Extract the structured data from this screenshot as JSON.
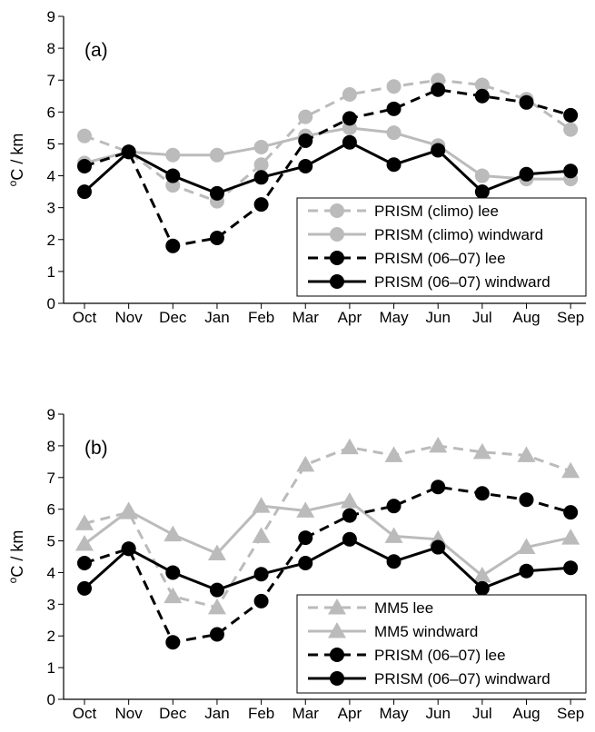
{
  "chart_data": [
    {
      "type": "line",
      "panel_label": "(a)",
      "ylabel_sup": "o",
      "ylabel_main": "C / km",
      "ylim": [
        0,
        9
      ],
      "yticks": [
        "0",
        "1",
        "2",
        "3",
        "4",
        "5",
        "6",
        "7",
        "8",
        "9"
      ],
      "categories": [
        "Oct",
        "Nov",
        "Dec",
        "Jan",
        "Feb",
        "Mar",
        "Apr",
        "May",
        "Jun",
        "Jul",
        "Aug",
        "Sep"
      ],
      "legend_position": "bottom-right",
      "series": [
        {
          "name": "PRISM (climo) lee",
          "color": "#bbbbbb",
          "dash": true,
          "marker": "circle",
          "values": [
            5.25,
            4.75,
            3.7,
            3.2,
            4.35,
            5.85,
            6.55,
            6.8,
            7.0,
            6.85,
            6.4,
            5.45
          ]
        },
        {
          "name": "PRISM (climo) windward",
          "color": "#bbbbbb",
          "dash": false,
          "marker": "circle",
          "values": [
            4.4,
            4.75,
            4.65,
            4.65,
            4.9,
            5.25,
            5.5,
            5.35,
            4.95,
            4.0,
            3.9,
            3.9
          ]
        },
        {
          "name": "PRISM (06–07) lee",
          "color": "#000000",
          "dash": true,
          "marker": "circle",
          "values": [
            4.3,
            4.75,
            1.8,
            2.05,
            3.1,
            5.1,
            5.8,
            6.1,
            6.7,
            6.5,
            6.3,
            5.9
          ]
        },
        {
          "name": "PRISM (06–07) windward",
          "color": "#000000",
          "dash": false,
          "marker": "circle",
          "values": [
            3.5,
            4.75,
            4.0,
            3.45,
            3.95,
            4.3,
            5.05,
            4.35,
            4.8,
            3.5,
            4.05,
            4.15
          ]
        }
      ]
    },
    {
      "type": "line",
      "panel_label": "(b)",
      "ylabel_sup": "o",
      "ylabel_main": "C / km",
      "ylim": [
        0,
        9
      ],
      "yticks": [
        "0",
        "1",
        "2",
        "3",
        "4",
        "5",
        "6",
        "7",
        "8",
        "9"
      ],
      "categories": [
        "Oct",
        "Nov",
        "Dec",
        "Jan",
        "Feb",
        "Mar",
        "Apr",
        "May",
        "Jun",
        "Jul",
        "Aug",
        "Sep"
      ],
      "legend_position": "bottom-right",
      "series": [
        {
          "name": "MM5 lee",
          "color": "#bbbbbb",
          "dash": true,
          "marker": "triangle",
          "values": [
            5.55,
            5.9,
            3.25,
            2.9,
            5.15,
            7.4,
            7.95,
            7.7,
            8.0,
            7.8,
            7.7,
            7.2
          ]
        },
        {
          "name": "MM5 windward",
          "color": "#bbbbbb",
          "dash": false,
          "marker": "triangle",
          "values": [
            4.9,
            5.95,
            5.2,
            4.6,
            6.1,
            5.95,
            6.25,
            5.15,
            5.05,
            3.9,
            4.8,
            5.1
          ]
        },
        {
          "name": "PRISM (06–07) lee",
          "color": "#000000",
          "dash": true,
          "marker": "circle",
          "values": [
            4.3,
            4.75,
            1.8,
            2.05,
            3.1,
            5.1,
            5.8,
            6.1,
            6.7,
            6.5,
            6.3,
            5.9
          ]
        },
        {
          "name": "PRISM (06–07) windward",
          "color": "#000000",
          "dash": false,
          "marker": "circle",
          "values": [
            3.5,
            4.75,
            4.0,
            3.45,
            3.95,
            4.3,
            5.05,
            4.35,
            4.8,
            3.5,
            4.05,
            4.15
          ]
        }
      ]
    }
  ]
}
